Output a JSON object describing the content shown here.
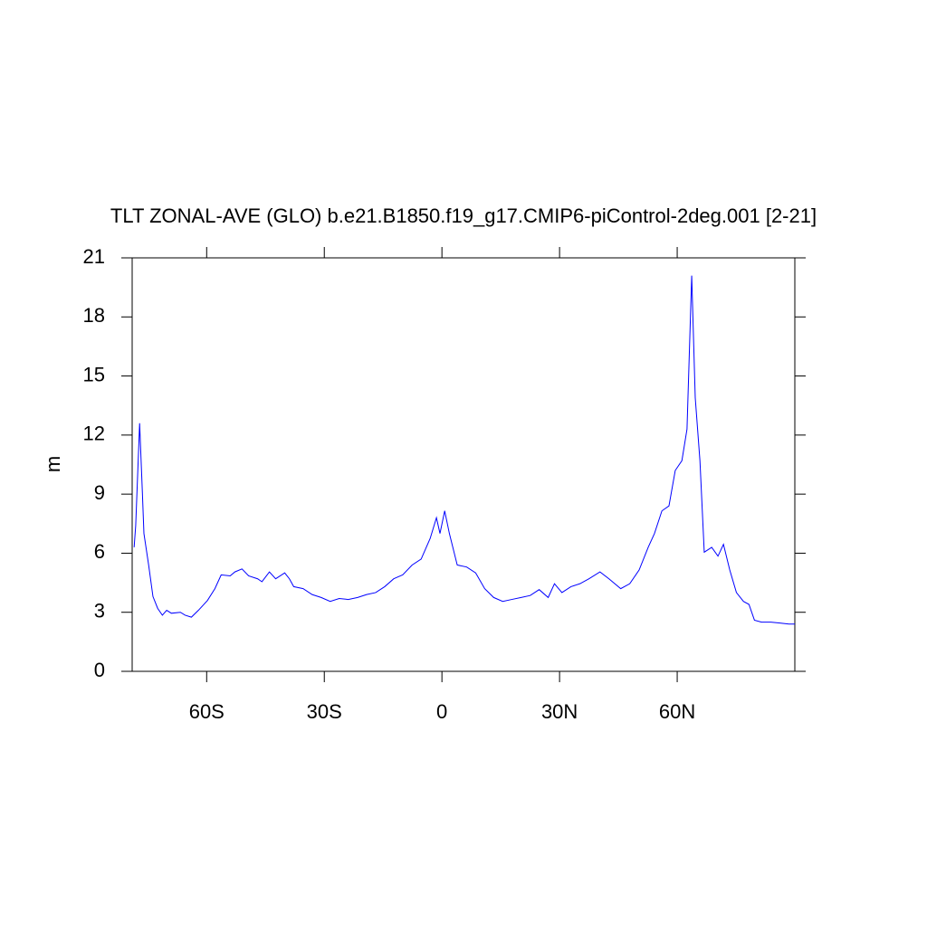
{
  "chart_data": {
    "type": "line",
    "title": "TLT ZONAL-AVE (GLO) b.e21.B1850.f19_g17.CMIP6-piControl-2deg.001 [2-21]",
    "y_label": "m",
    "x": [
      -78.5,
      -78.1,
      -77.1,
      -76.4,
      -76,
      -74.8,
      -73.7,
      -72.5,
      -71.3,
      -70.2,
      -69,
      -66.7,
      -65.5,
      -63.9,
      -62.1,
      -59.8,
      -57.9,
      -56.3,
      -54,
      -52.8,
      -51,
      -49.3,
      -47,
      -45.9,
      -44,
      -42.4,
      -40.1,
      -38.9,
      -37.8,
      -35.4,
      -33.1,
      -30.8,
      -28.5,
      -26.2,
      -23.9,
      -21.5,
      -19.2,
      -16.9,
      -14.6,
      -12.3,
      -10,
      -7.6,
      -5.3,
      -3,
      -1.4,
      -0.5,
      0.7,
      1.9,
      3.9,
      6.3,
      8.6,
      10.9,
      13.2,
      15.5,
      17.8,
      20.2,
      22.5,
      24.8,
      27.1,
      28.7,
      30.6,
      32.9,
      35.2,
      37.5,
      40.3,
      42.6,
      45.6,
      47.9,
      50.3,
      52.6,
      54.2,
      56.1,
      57.9,
      59.5,
      61.2,
      62.5,
      63.7,
      64.6,
      65.8,
      66.9,
      68.8,
      70.4,
      71.8,
      73.4,
      75.1,
      76.9,
      78.3,
      79.7,
      81.5,
      83.9,
      86.2,
      88.5,
      90
    ],
    "series": [
      {
        "name": "TLT",
        "color": "#0000ff",
        "values": [
          6.3,
          7.4,
          12.6,
          9.1,
          7.0,
          5.4,
          3.8,
          3.2,
          2.85,
          3.1,
          2.95,
          3.0,
          2.85,
          2.75,
          3.1,
          3.6,
          4.2,
          4.9,
          4.85,
          5.05,
          5.2,
          4.85,
          4.7,
          4.55,
          5.05,
          4.7,
          5.0,
          4.7,
          4.3,
          4.2,
          3.9,
          3.75,
          3.55,
          3.7,
          3.65,
          3.75,
          3.9,
          4.0,
          4.3,
          4.7,
          4.9,
          5.4,
          5.7,
          6.75,
          7.8,
          7.0,
          8.15,
          7.0,
          5.4,
          5.3,
          5.0,
          4.2,
          3.75,
          3.55,
          3.65,
          3.75,
          3.85,
          4.15,
          3.75,
          4.45,
          4.0,
          4.3,
          4.45,
          4.7,
          5.05,
          4.7,
          4.2,
          4.45,
          5.15,
          6.3,
          7.0,
          8.15,
          8.4,
          10.2,
          10.7,
          12.3,
          20.1,
          13.9,
          10.7,
          6.05,
          6.3,
          5.85,
          6.45,
          5.15,
          4.0,
          3.55,
          3.4,
          2.6,
          2.5,
          2.5,
          2.45,
          2.4,
          2.4
        ]
      }
    ],
    "xlim": [
      -79,
      90
    ],
    "xticks": [
      {
        "value": -60,
        "label": "60S"
      },
      {
        "value": -30,
        "label": "30S"
      },
      0,
      {
        "value": 30,
        "label": "30N"
      },
      {
        "value": 60,
        "label": "60N"
      }
    ],
    "ylim": [
      0,
      21
    ],
    "yticks": [
      0,
      3,
      6,
      9,
      12,
      15,
      18,
      21
    ]
  }
}
